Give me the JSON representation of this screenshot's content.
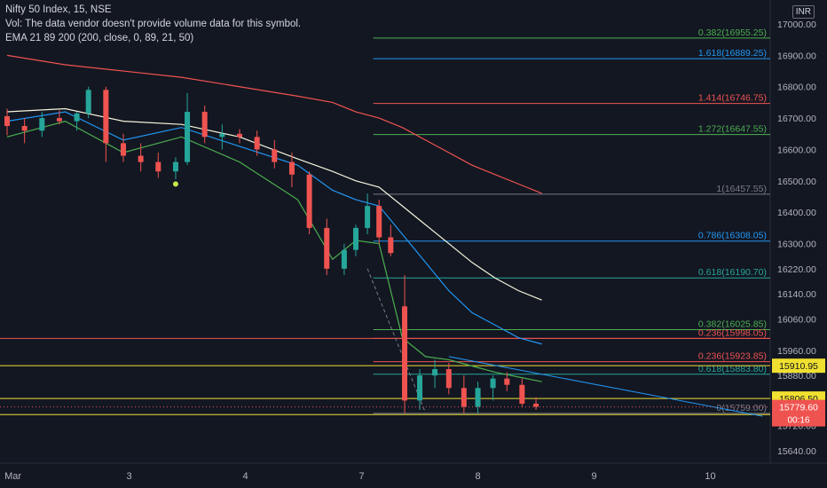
{
  "header": {
    "symbol_line": "Nifty 50 Index, 15, NSE",
    "vol_line": "Vol: The data vendor doesn't provide volume data for this symbol.",
    "ema_line": "EMA 21 89 200 (200, close, 0, 89, 21, 50)",
    "currency": "INR"
  },
  "chart_data": {
    "type": "candlestick",
    "title": "",
    "xlabel": "",
    "ylabel": "",
    "ylim": [
      15590,
      17050
    ],
    "y_ticks": [
      17000,
      16900,
      16800,
      16700,
      16600,
      16500,
      16400,
      16300,
      16220,
      16140,
      16060,
      15960,
      15880,
      15800,
      15720,
      15640
    ],
    "x_ticks": [
      {
        "label": "Mar",
        "x": 0.5
      },
      {
        "label": "3",
        "x": 10.5
      },
      {
        "label": "4",
        "x": 20.5
      },
      {
        "label": "7",
        "x": 30.5
      },
      {
        "label": "8",
        "x": 40.5
      },
      {
        "label": "9",
        "x": 50.5
      },
      {
        "label": "10",
        "x": 60.5
      }
    ],
    "grid": false,
    "colors": {
      "up": "#26a69a",
      "down": "#ef5350",
      "background": "#131722"
    },
    "candles": [
      [
        16706,
        16730,
        16645,
        16675
      ],
      [
        16675,
        16700,
        16620,
        16660
      ],
      [
        16660,
        16720,
        16640,
        16700
      ],
      [
        16700,
        16725,
        16680,
        16690
      ],
      [
        16690,
        16720,
        16660,
        16715
      ],
      [
        16715,
        16800,
        16700,
        16790
      ],
      [
        16790,
        16800,
        16560,
        16620
      ],
      [
        16620,
        16650,
        16560,
        16580
      ],
      [
        16580,
        16620,
        16530,
        16560
      ],
      [
        16560,
        16590,
        16510,
        16530
      ],
      [
        16530,
        16575,
        16505,
        16560
      ],
      [
        16560,
        16780,
        16550,
        16720
      ],
      [
        16720,
        16740,
        16620,
        16640
      ],
      [
        16640,
        16680,
        16600,
        16650
      ],
      [
        16650,
        16665,
        16620,
        16640
      ],
      [
        16640,
        16660,
        16580,
        16600
      ],
      [
        16600,
        16630,
        16540,
        16560
      ],
      [
        16560,
        16590,
        16480,
        16520
      ],
      [
        16520,
        16530,
        16330,
        16350
      ],
      [
        16350,
        16380,
        16200,
        16220
      ],
      [
        16220,
        16300,
        16200,
        16280
      ],
      [
        16280,
        16360,
        16260,
        16350
      ],
      [
        16350,
        16460,
        16330,
        16420
      ],
      [
        16420,
        16440,
        16300,
        16320
      ],
      [
        16320,
        16360,
        16260,
        16270
      ],
      [
        16100,
        16200,
        15760,
        15800
      ],
      [
        15800,
        15900,
        15770,
        15880
      ],
      [
        15880,
        15930,
        15840,
        15900
      ],
      [
        15900,
        15920,
        15820,
        15840
      ],
      [
        15840,
        15880,
        15760,
        15780
      ],
      [
        15780,
        15860,
        15760,
        15840
      ],
      [
        15840,
        15880,
        15800,
        15870
      ],
      [
        15870,
        15890,
        15830,
        15850
      ],
      [
        15850,
        15870,
        15780,
        15790
      ],
      [
        15790,
        15810,
        15770,
        15780
      ]
    ],
    "candle_x": [
      0,
      1.5,
      3,
      4.5,
      6,
      7,
      8.5,
      10,
      11.5,
      13,
      14.5,
      15.5,
      17,
      18.5,
      20,
      21.5,
      23,
      24.5,
      26,
      27.5,
      29,
      30,
      31,
      32,
      33,
      34.2,
      35.5,
      36.8,
      38,
      39.3,
      40.5,
      41.8,
      43,
      44.3,
      45.5
    ],
    "series": [
      {
        "name": "EMA 21",
        "color": "#4caf50",
        "x": [
          0,
          5,
          10,
          15,
          20,
          25,
          28,
          30,
          32,
          34,
          36,
          38,
          40,
          42,
          44,
          46
        ],
        "values": [
          16640,
          16690,
          16590,
          16640,
          16560,
          16440,
          16250,
          16310,
          16300,
          16000,
          15940,
          15930,
          15910,
          15890,
          15875,
          15860
        ]
      },
      {
        "name": "EMA 89",
        "color": "#2196f3",
        "x": [
          0,
          5,
          10,
          15,
          20,
          25,
          28,
          30,
          32,
          34,
          36,
          38,
          40,
          42,
          44,
          46
        ],
        "values": [
          16690,
          16720,
          16630,
          16670,
          16610,
          16550,
          16470,
          16440,
          16420,
          16330,
          16240,
          16150,
          16080,
          16040,
          16000,
          15980
        ]
      },
      {
        "name": "EMA 200",
        "color": "#f5f5dc",
        "x": [
          0,
          5,
          10,
          15,
          20,
          25,
          28,
          30,
          32,
          34,
          36,
          38,
          40,
          42,
          44,
          46
        ],
        "values": [
          16720,
          16730,
          16690,
          16680,
          16640,
          16570,
          16530,
          16500,
          16480,
          16420,
          16360,
          16300,
          16240,
          16190,
          16150,
          16120
        ]
      },
      {
        "name": "MA red",
        "color": "#ef5350",
        "x": [
          0,
          5,
          10,
          15,
          20,
          25,
          28,
          30,
          32,
          34,
          36,
          38,
          40,
          42,
          44,
          46
        ],
        "values": [
          16900,
          16870,
          16850,
          16830,
          16800,
          16770,
          16750,
          16720,
          16700,
          16670,
          16630,
          16590,
          16550,
          16520,
          16490,
          16460
        ]
      }
    ],
    "fib_sets": [
      {
        "x_start": 31.5,
        "levels": [
          {
            "label": "0.382(16955.25)",
            "value": 16955.25,
            "color": "#4caf50"
          },
          {
            "label": "1.618(16889.25)",
            "value": 16889.25,
            "color": "#2196f3"
          },
          {
            "label": "1.414(16746.75)",
            "value": 16746.75,
            "color": "#ef5350"
          },
          {
            "label": "1.272(16647.55)",
            "value": 16647.55,
            "color": "#4caf50"
          },
          {
            "label": "1(16457.55)",
            "value": 16457.55,
            "color": "#787b86"
          },
          {
            "label": "0.786(16308.05)",
            "value": 16308.05,
            "color": "#2196f3"
          },
          {
            "label": "0.618(16190.70)",
            "value": 16190.7,
            "color": "#26a69a"
          },
          {
            "label": "0.382(16025.85)",
            "value": 16025.85,
            "color": "#4caf50"
          },
          {
            "label": "0.236(15998.05)",
            "value": 15998.05,
            "color": "#ef5350"
          },
          {
            "label": "0.236(15923.85)",
            "value": 15923.85,
            "color": "#ef5350"
          },
          {
            "label": "0.618(15883.80)",
            "value": 15883.8,
            "color": "#26a69a"
          },
          {
            "label": "0(15759.00)",
            "value": 15759.0,
            "color": "#787b86"
          }
        ]
      }
    ],
    "horizontal_lines": [
      {
        "value": 15910.95,
        "color": "#f0e030",
        "label": "15910.95"
      },
      {
        "value": 15806.5,
        "color": "#f0e030",
        "label": "15806.50"
      },
      {
        "value": 15755.05,
        "color": "#f0e030",
        "label": "15755.05"
      },
      {
        "value": 15998.05,
        "color": "#ef5350",
        "label": ""
      }
    ],
    "trendline": {
      "x": [
        38,
        65
      ],
      "values": [
        15940,
        15750
      ],
      "color": "#2196f3"
    },
    "dashed_line": {
      "x": [
        31,
        36
      ],
      "values": [
        16220,
        15760
      ],
      "color": "#787b86"
    },
    "current_price": {
      "label": "15779.60",
      "countdown": "00:16",
      "value": 15779.6
    },
    "marker_dot": {
      "x": 14.5,
      "value": 16490,
      "color": "#c6e94c"
    }
  }
}
